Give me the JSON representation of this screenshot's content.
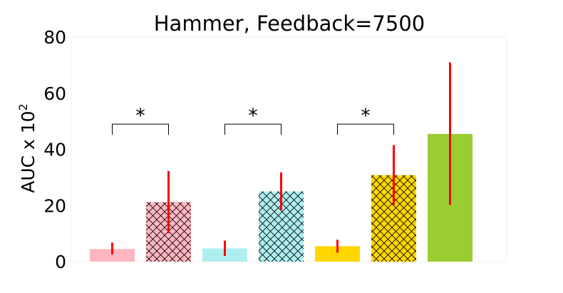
{
  "chart_data": {
    "type": "bar",
    "title": "Hammer, Feedback=7500",
    "ylabel": "AUC x 10",
    "ylabel_exponent": "2",
    "xlabel": "",
    "ylim": [
      0,
      80
    ],
    "yticks": [
      "0",
      "20",
      "40",
      "60",
      "80"
    ],
    "grid": false,
    "bars": [
      {
        "value": 4.5,
        "err_low": 2.5,
        "err_high": 6.8,
        "color": "#FFB6C1",
        "hatch": false
      },
      {
        "value": 21.2,
        "err_low": 10.2,
        "err_high": 32.3,
        "color": "#FFB6C1",
        "hatch": true
      },
      {
        "value": 4.7,
        "err_low": 2.0,
        "err_high": 7.5,
        "color": "#AFEEEE",
        "hatch": false
      },
      {
        "value": 25.0,
        "err_low": 18.3,
        "err_high": 31.8,
        "color": "#AFEEEE",
        "hatch": true
      },
      {
        "value": 5.5,
        "err_low": 3.2,
        "err_high": 7.8,
        "color": "#FFD700",
        "hatch": false
      },
      {
        "value": 30.8,
        "err_low": 20.2,
        "err_high": 41.5,
        "color": "#FFD700",
        "hatch": true
      },
      {
        "value": 45.5,
        "err_low": 20.2,
        "err_high": 71.0,
        "color": "#9ACD32",
        "hatch": false
      }
    ],
    "error_color": "#FF0000",
    "significance": [
      {
        "from": 0,
        "to": 1,
        "label": "*",
        "level": 49
      },
      {
        "from": 2,
        "to": 3,
        "label": "*",
        "level": 49
      },
      {
        "from": 4,
        "to": 5,
        "label": "*",
        "level": 49
      }
    ]
  }
}
